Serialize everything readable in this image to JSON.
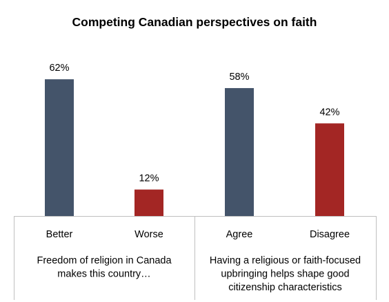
{
  "chart_data": {
    "type": "bar",
    "title": "Competing Canadian perspectives on faith",
    "value_suffix": "%",
    "ylim": [
      0,
      70
    ],
    "grid": false,
    "legend": "none",
    "categories": [
      "Better",
      "Worse",
      "Agree",
      "Disagree"
    ],
    "values": [
      62,
      12,
      58,
      42
    ],
    "bar_colors": [
      "#44546a",
      "#a32624",
      "#44546a",
      "#a32624"
    ],
    "data_labels": [
      "62%",
      "12%",
      "58%",
      "42%"
    ],
    "groups": [
      {
        "label_lines": [
          "Freedom of religion in Canada",
          "makes this country…"
        ],
        "categories": [
          "Better",
          "Worse"
        ]
      },
      {
        "label_lines": [
          "Having a religious or faith-focused",
          "upbringing helps shape good",
          "citizenship characteristics"
        ],
        "categories": [
          "Agree",
          "Disagree"
        ]
      }
    ]
  }
}
